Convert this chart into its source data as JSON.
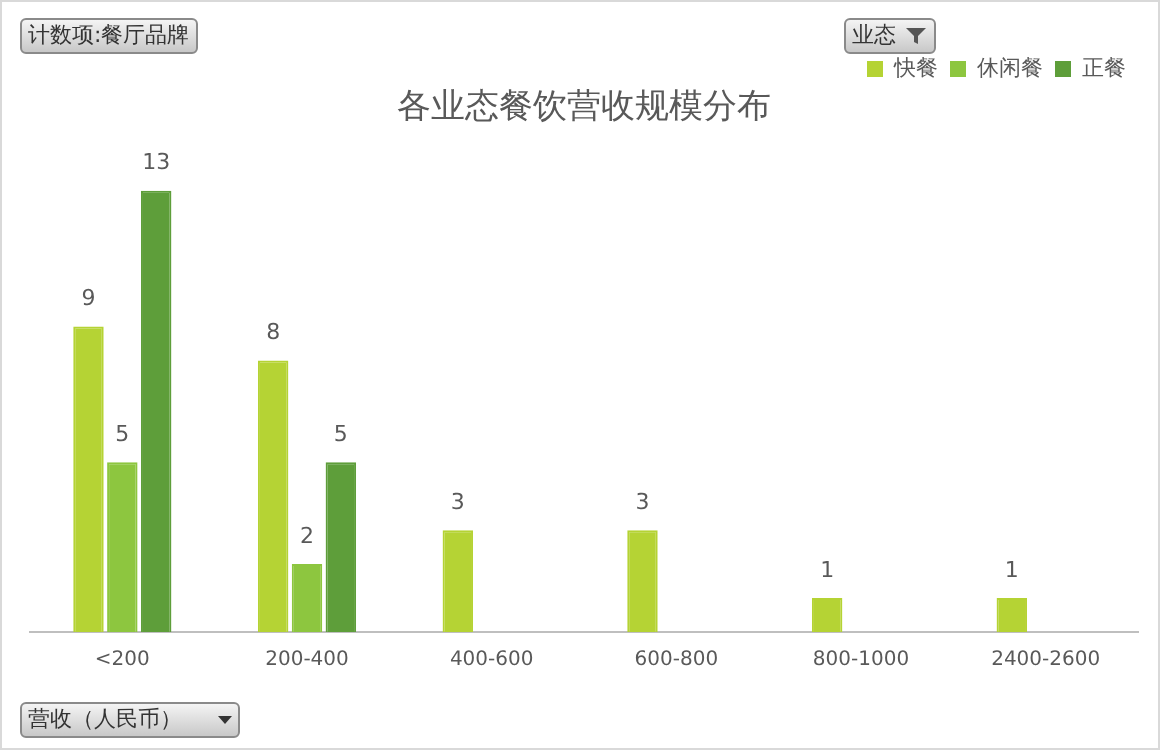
{
  "chart_data": {
    "type": "bar",
    "title": "各业态餐饮营收规模分布",
    "xlabel": "营收（人民币）",
    "annotations": [
      "计数项:餐厅品牌"
    ],
    "legend_title": "业态",
    "categories": [
      "<200",
      "200-400",
      "400-600",
      "600-800",
      "800-1000",
      "2400-2600"
    ],
    "series": [
      {
        "name": "快餐",
        "color": "#b5d334",
        "values": [
          9,
          8,
          3,
          3,
          1,
          1
        ]
      },
      {
        "name": "休闲餐",
        "color": "#8dc63f",
        "values": [
          5,
          2,
          null,
          null,
          null,
          null
        ]
      },
      {
        "name": "正餐",
        "color": "#5e9e3a",
        "values": [
          13,
          5,
          null,
          null,
          null,
          null
        ]
      }
    ],
    "data_labels": true,
    "legend": "top right"
  }
}
